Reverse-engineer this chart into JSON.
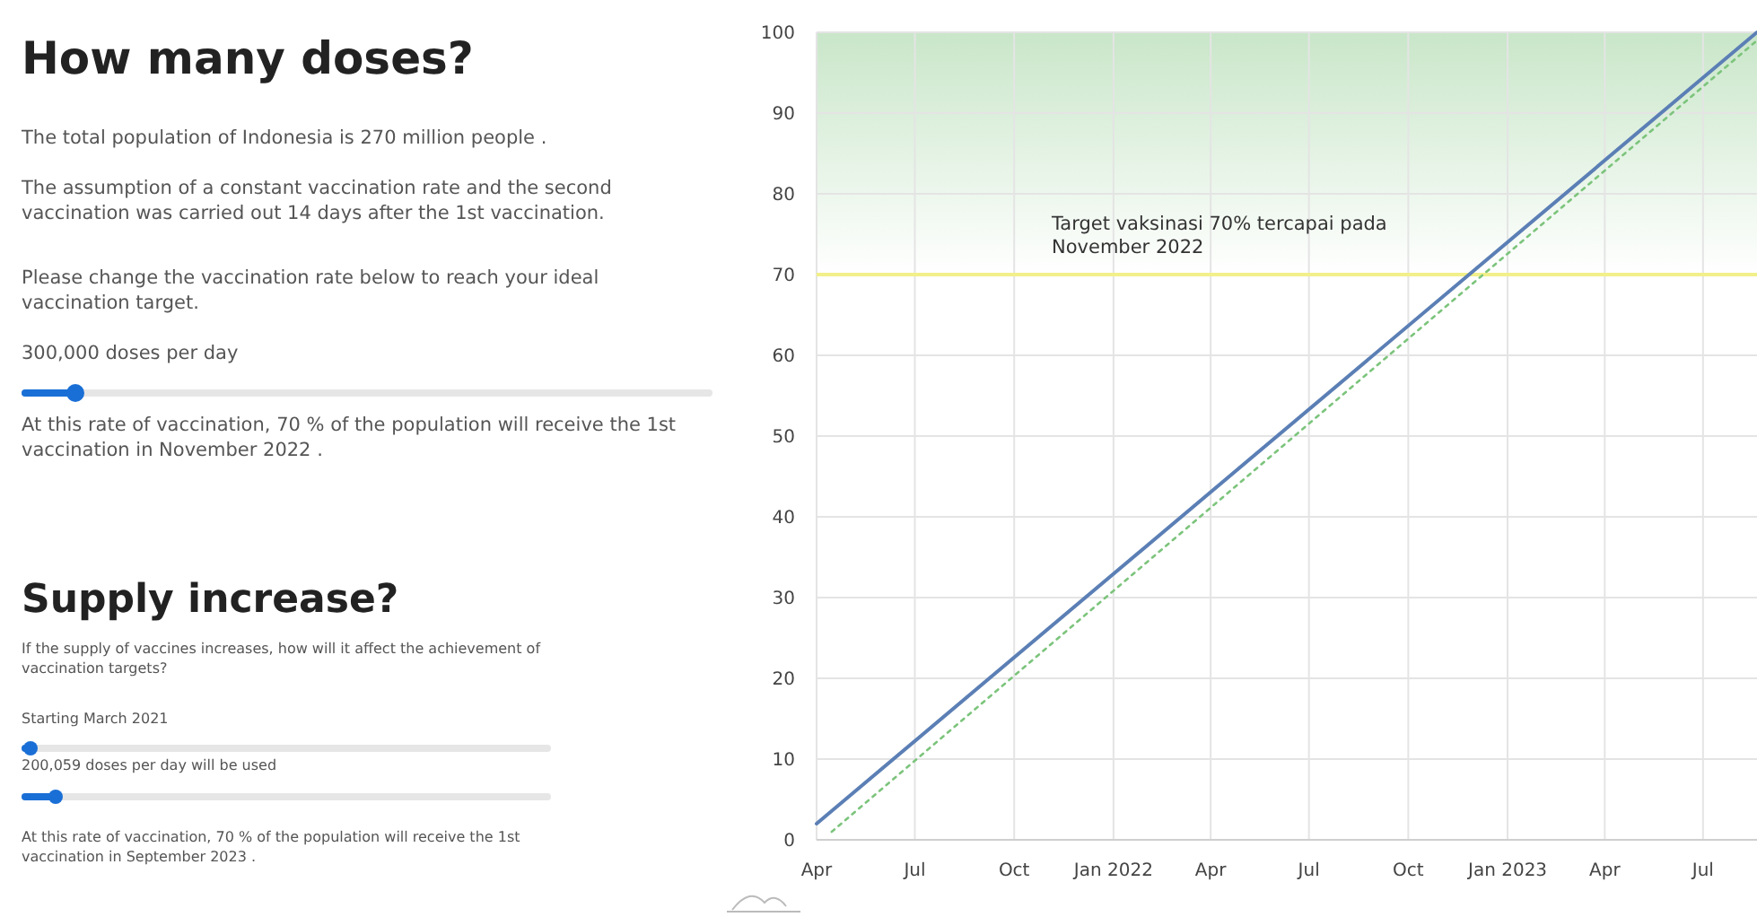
{
  "chart_data": [
    {
      "type": "other",
      "title": "How many doses?",
      "annotations": [
        "The total population of Indonesia is 270 million people .",
        "The assumption of a constant vaccination rate and the second vaccination was carried out 14 days after the 1st vaccination.",
        "Please change the vaccination rate below to reach your ideal vaccination target.",
        "300,000 doses per day",
        "At this rate of vaccination, 70 % of the population will receive the 1st vaccination in November 2022 ."
      ]
    },
    {
      "type": "other",
      "title": "Supply increase?",
      "annotations": [
        "If the supply of vaccines increases, how will it affect the achievement of vaccination targets?",
        "Starting March 2021",
        "200,059 doses per day will be used",
        "At this rate of vaccination, 70 % of the population will receive the 1st vaccination in September 2023 ."
      ]
    },
    {
      "type": "line",
      "xlim": [
        "2021-04-01",
        "2023-08-20"
      ],
      "ylim": [
        0,
        100
      ],
      "xticks": [
        {
          "value": "2021-04-01",
          "label": "Apr"
        },
        {
          "value": "2021-07-01",
          "label": "Jul"
        },
        {
          "value": "2021-10-01",
          "label": "Oct"
        },
        {
          "value": "2022-01-01",
          "label": "Jan 2022"
        },
        {
          "value": "2022-04-01",
          "label": "Apr"
        },
        {
          "value": "2022-07-01",
          "label": "Jul"
        },
        {
          "value": "2022-10-01",
          "label": "Oct"
        },
        {
          "value": "2023-01-01",
          "label": "Jan 2023"
        },
        {
          "value": "2023-04-01",
          "label": "Apr"
        },
        {
          "value": "2023-07-01",
          "label": "Jul"
        }
      ],
      "yticks": [
        0,
        10,
        20,
        30,
        40,
        50,
        60,
        70,
        80,
        90,
        100
      ],
      "grid": true,
      "series": [
        {
          "color": "#5b7fb5",
          "x": [
            "2021-04-01",
            "2023-08-20"
          ],
          "values": [
            2,
            100
          ],
          "line_style": "solid"
        },
        {
          "color": "#7cc47c",
          "x": [
            "2021-04-15",
            "2023-08-20"
          ],
          "values": [
            1,
            99
          ],
          "line_style": "dotted"
        }
      ],
      "bands": [
        {
          "axis": "y",
          "from": 70,
          "to": 100,
          "color": "#c9e6c9"
        }
      ],
      "ref_lines": [
        {
          "axis": "y",
          "value": 70,
          "label": "Target vaksinasi 70% tercapai pada November 2022",
          "color": "#f2f08a"
        }
      ]
    }
  ]
}
